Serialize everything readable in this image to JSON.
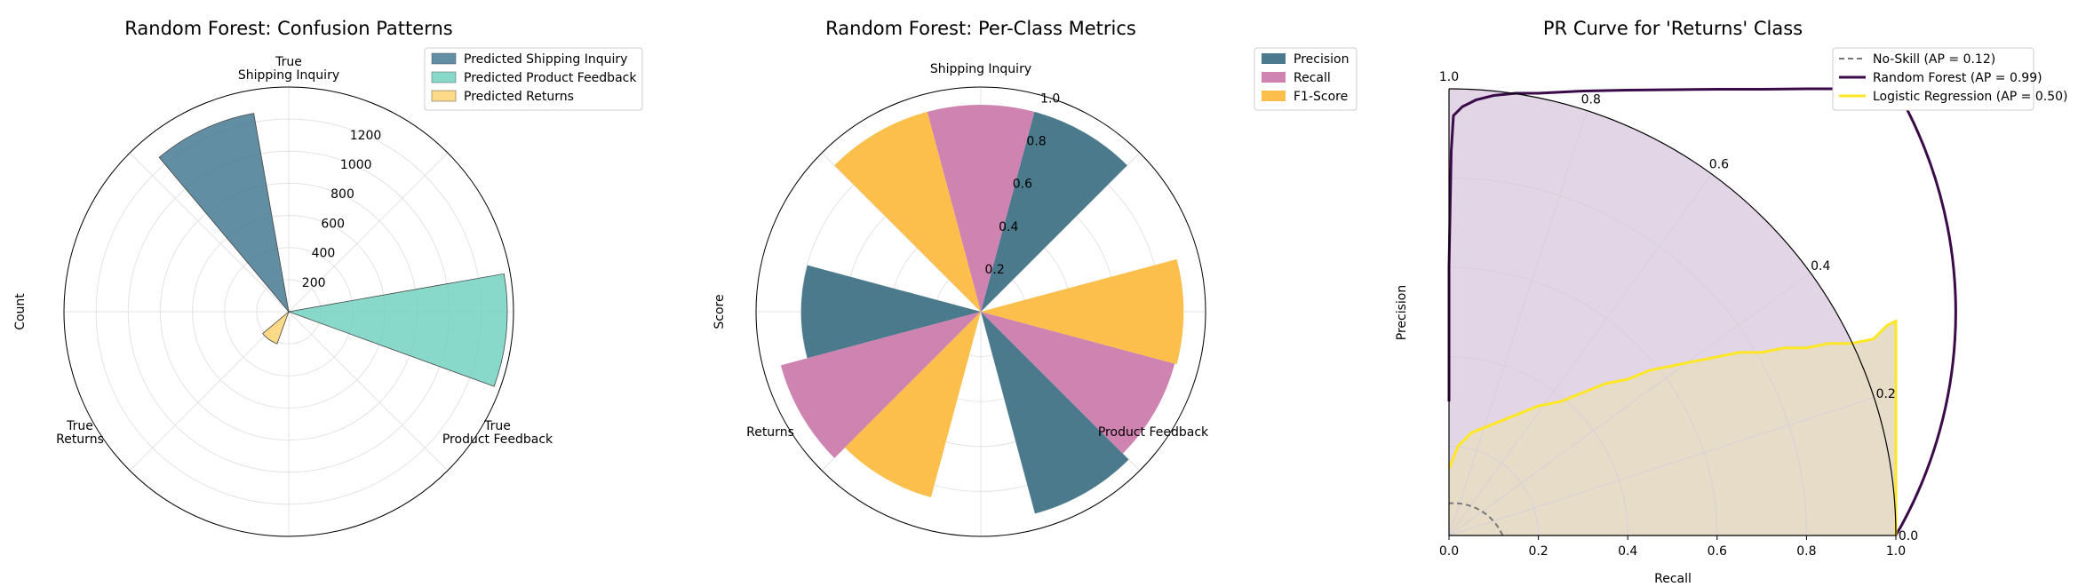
{
  "chart_data": [
    {
      "type": "polar-bar",
      "title": "Random Forest: Confusion Patterns",
      "ylabel": "Count",
      "categories": [
        "True\nShipping Inquiry",
        "True\nProduct Feedback",
        "True\nReturns"
      ],
      "r_ticks": [
        200,
        400,
        600,
        800,
        1000,
        1200
      ],
      "rlim": [
        0,
        1450
      ],
      "series": [
        {
          "name": "Predicted Shipping Inquiry",
          "color": "#3f7590",
          "values": [
            1300,
            null,
            null
          ]
        },
        {
          "name": "Predicted Product Feedback",
          "color": "#6fd1bf",
          "values": [
            null,
            1410,
            null
          ]
        },
        {
          "name": "Predicted Returns",
          "color": "#fdd26e",
          "values": [
            null,
            null,
            220
          ]
        }
      ],
      "legend": "top-right"
    },
    {
      "type": "polar-bar",
      "title": "Random Forest: Per-Class Metrics",
      "ylabel": "Score",
      "categories": [
        "Shipping Inquiry",
        "Product Feedback",
        "Returns"
      ],
      "r_ticks": [
        "0.2",
        "0.4",
        "0.6",
        "0.8",
        "1.0"
      ],
      "rlim": [
        0,
        1.0
      ],
      "series": [
        {
          "name": "Precision",
          "color": "#4b7a8c",
          "values": [
            0.98,
            0.99,
            0.85
          ]
        },
        {
          "name": "Recall",
          "color": "#cf83b0",
          "values": [
            0.98,
            0.95,
            0.98
          ]
        },
        {
          "name": "F1-Score",
          "color": "#fdbf4c",
          "values": [
            0.98,
            0.96,
            0.91
          ]
        }
      ],
      "legend": "top-right"
    },
    {
      "type": "line",
      "title": "PR Curve for 'Returns' Class",
      "xlabel": "Recall",
      "ylabel": "Precision",
      "theta_ticks": [
        "0.0",
        "0.2",
        "0.4",
        "0.6",
        "0.8",
        "1.0"
      ],
      "x_ticks": [
        "0.0",
        "0.2",
        "0.4",
        "0.6",
        "0.8",
        "1.0"
      ],
      "legend": "top-right",
      "series": [
        {
          "name": "No-Skill (AP = 0.12)",
          "color": "#777777",
          "style": "dashed",
          "x": [
            0,
            1
          ],
          "y": [
            0.12,
            0.12
          ]
        },
        {
          "name": "Random Forest (AP = 0.99)",
          "color": "#3b0a48",
          "fill": "#e2d5e6",
          "x": [
            0.0,
            0.005,
            0.01,
            0.03,
            0.06,
            0.1,
            0.15,
            0.2,
            0.3,
            0.4,
            0.5,
            0.6,
            0.7,
            0.8,
            0.9,
            0.95,
            1.0
          ],
          "y": [
            0.6,
            0.86,
            0.94,
            0.96,
            0.975,
            0.985,
            0.99,
            0.99,
            0.995,
            0.997,
            0.998,
            0.999,
            0.999,
            1.0,
            1.0,
            1.0,
            1.0
          ]
        },
        {
          "name": "Logistic Regression (AP = 0.50)",
          "color": "#fde725",
          "fill": "#e7dcc7",
          "x": [
            0.0,
            0.02,
            0.05,
            0.1,
            0.15,
            0.2,
            0.25,
            0.3,
            0.35,
            0.4,
            0.45,
            0.5,
            0.55,
            0.6,
            0.65,
            0.7,
            0.75,
            0.8,
            0.85,
            0.9,
            0.95,
            0.98,
            1.0
          ],
          "y": [
            0.15,
            0.2,
            0.23,
            0.25,
            0.27,
            0.29,
            0.3,
            0.32,
            0.34,
            0.35,
            0.37,
            0.38,
            0.39,
            0.4,
            0.41,
            0.41,
            0.42,
            0.42,
            0.43,
            0.43,
            0.44,
            0.47,
            0.48
          ]
        }
      ]
    }
  ]
}
